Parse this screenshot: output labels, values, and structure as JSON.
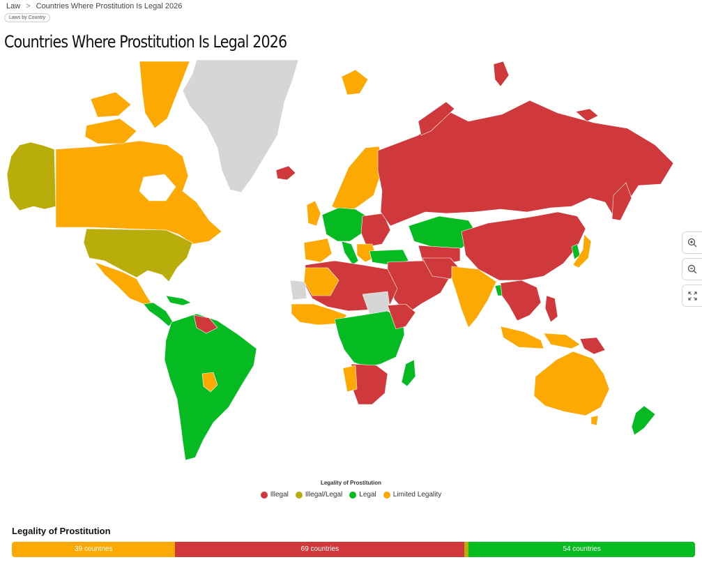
{
  "breadcrumb": {
    "items": [
      "Law",
      "Countries Where Prostitution Is Legal 2026"
    ],
    "separator": ">"
  },
  "tag": "Laws by Country",
  "title": "Countries Where Prostitution Is Legal 2026",
  "colors": {
    "illegal": "#d0393b",
    "illegal_legal": "#b8ad0b",
    "legal": "#05bb21",
    "limited": "#fca903",
    "no_data": "#d6d6d6",
    "ocean": "#ffffff"
  },
  "map": {
    "legend_title": "Legality of Prostitution",
    "legend": [
      {
        "label": "Illegal",
        "color": "#d0393b"
      },
      {
        "label": "Illegal/Legal",
        "color": "#b8ad0b"
      },
      {
        "label": "Legal",
        "color": "#05bb21"
      },
      {
        "label": "Limited Legality",
        "color": "#fca903"
      }
    ],
    "controls": [
      {
        "name": "zoom-in",
        "icon": "zoom-in-icon"
      },
      {
        "name": "zoom-out",
        "icon": "zoom-out-icon"
      },
      {
        "name": "fullscreen",
        "icon": "expand-icon"
      }
    ]
  },
  "summary": {
    "title": "Legality of Prostitution",
    "segments": [
      {
        "label": "39 countries",
        "count": 39,
        "color": "#fca903"
      },
      {
        "label": "69 countries",
        "count": 69,
        "color": "#d0393b"
      },
      {
        "label": "",
        "count": 1,
        "color": "#b8ad0b"
      },
      {
        "label": "54 countries",
        "count": 54,
        "color": "#05bb21"
      }
    ]
  }
}
